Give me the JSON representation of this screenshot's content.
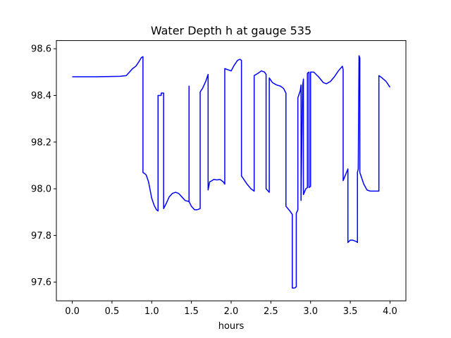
{
  "chart_data": {
    "type": "line",
    "title": "Water Depth h at gauge 535",
    "xlabel": "hours",
    "ylabel": "",
    "xlim": [
      -0.2,
      4.2
    ],
    "ylim": [
      97.52,
      98.635
    ],
    "xticks": [
      0.0,
      0.5,
      1.0,
      1.5,
      2.0,
      2.5,
      3.0,
      3.5,
      4.0
    ],
    "xtick_labels": [
      "0.0",
      "0.5",
      "1.0",
      "1.5",
      "2.0",
      "2.5",
      "3.0",
      "3.5",
      "4.0"
    ],
    "yticks": [
      97.6,
      97.8,
      98.0,
      98.2,
      98.4,
      98.6
    ],
    "ytick_labels": [
      "97.6",
      "97.8",
      "98.0",
      "98.2",
      "98.4",
      "98.6"
    ],
    "grid": false,
    "legend": "none",
    "series": [
      {
        "color": "#0000ff",
        "x": [
          0.0,
          0.3,
          0.6,
          0.68,
          0.72,
          0.76,
          0.8,
          0.84,
          0.87,
          0.89,
          0.89,
          0.93,
          0.96,
          1.0,
          1.03,
          1.06,
          1.08,
          1.08,
          1.12,
          1.12,
          1.15,
          1.15,
          1.18,
          1.22,
          1.26,
          1.3,
          1.34,
          1.38,
          1.42,
          1.47,
          1.47,
          1.47,
          1.47,
          1.5,
          1.54,
          1.57,
          1.61,
          1.61,
          1.64,
          1.68,
          1.71,
          1.71,
          1.73,
          1.76,
          1.78,
          1.82,
          1.86,
          1.9,
          1.92,
          1.92,
          1.96,
          2.0,
          2.04,
          2.08,
          2.11,
          2.13,
          2.13,
          2.16,
          2.2,
          2.25,
          2.29,
          2.29,
          2.34,
          2.38,
          2.42,
          2.44,
          2.44,
          2.48,
          2.48,
          2.52,
          2.57,
          2.62,
          2.66,
          2.69,
          2.69,
          2.74,
          2.77,
          2.77,
          2.8,
          2.82,
          2.82,
          2.84,
          2.84,
          2.87,
          2.88,
          2.88,
          2.9,
          2.91,
          2.91,
          2.94,
          2.96,
          2.96,
          2.98,
          2.98,
          3.0,
          3.0,
          3.01,
          3.04,
          3.1,
          3.16,
          3.2,
          3.25,
          3.3,
          3.35,
          3.4,
          3.41,
          3.41,
          3.44,
          3.47,
          3.47,
          3.5,
          3.53,
          3.57,
          3.59,
          3.59,
          3.6,
          3.61,
          3.62,
          3.62,
          3.64,
          3.67,
          3.71,
          3.75,
          3.8,
          3.86,
          3.86,
          3.9,
          3.95,
          4.0
        ],
        "y": [
          98.48,
          98.48,
          98.482,
          98.485,
          98.5,
          98.515,
          98.525,
          98.545,
          98.562,
          98.566,
          98.07,
          98.06,
          98.03,
          97.96,
          97.93,
          97.91,
          97.905,
          98.4,
          98.4,
          98.41,
          98.41,
          97.915,
          97.935,
          97.965,
          97.98,
          97.985,
          97.98,
          97.965,
          97.95,
          97.945,
          98.44,
          97.945,
          97.945,
          97.925,
          97.91,
          97.91,
          97.915,
          98.415,
          98.43,
          98.46,
          98.49,
          97.995,
          98.03,
          98.035,
          98.04,
          98.038,
          98.04,
          98.03,
          98.02,
          98.515,
          98.51,
          98.505,
          98.53,
          98.55,
          98.555,
          98.55,
          98.055,
          98.04,
          98.02,
          98.0,
          97.99,
          98.485,
          98.495,
          98.505,
          98.5,
          98.49,
          98.0,
          97.985,
          98.475,
          98.455,
          98.445,
          98.44,
          98.43,
          98.41,
          97.925,
          97.905,
          97.89,
          97.575,
          97.575,
          97.58,
          97.895,
          97.91,
          98.39,
          98.42,
          98.445,
          97.95,
          98.44,
          98.47,
          97.975,
          98.0,
          98.005,
          98.495,
          98.5,
          98.005,
          98.01,
          98.5,
          98.5,
          98.5,
          98.48,
          98.455,
          98.45,
          98.46,
          98.48,
          98.505,
          98.525,
          98.51,
          98.035,
          98.06,
          98.085,
          97.77,
          97.78,
          97.78,
          97.775,
          97.77,
          98.07,
          98.085,
          98.57,
          98.56,
          98.07,
          98.05,
          98.02,
          97.995,
          97.99,
          97.99,
          97.99,
          98.485,
          98.475,
          98.46,
          98.435
        ]
      }
    ]
  }
}
